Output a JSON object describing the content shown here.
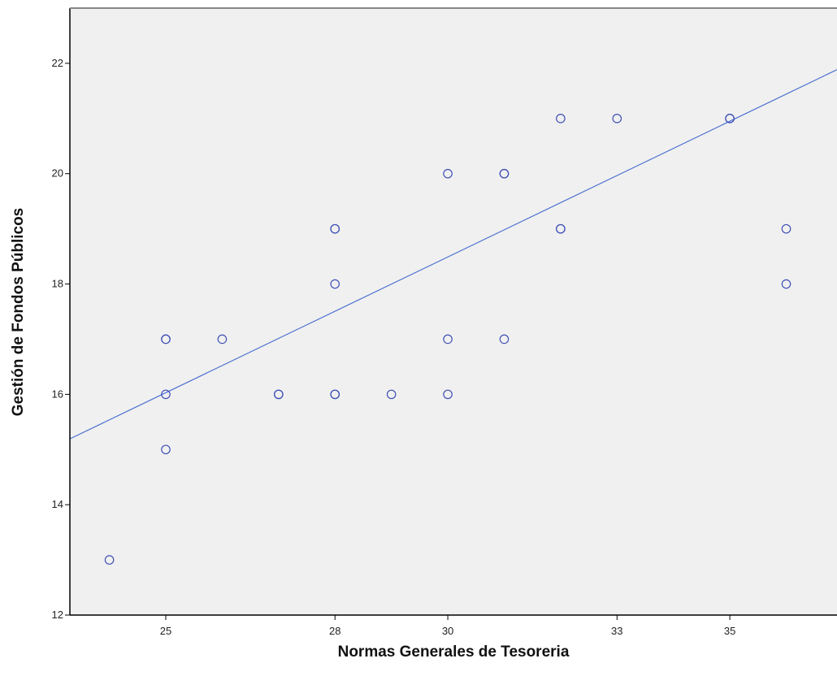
{
  "chart_data": {
    "type": "scatter",
    "title": "",
    "xlabel": "Normas Generales de Tesoreria",
    "ylabel": "Gestión de Fondos Públicos",
    "xlim": [
      23.3,
      36.9
    ],
    "ylim": [
      12,
      23
    ],
    "x_ticks": [
      25,
      28,
      30,
      33,
      35
    ],
    "y_ticks": [
      12,
      14,
      16,
      18,
      20,
      22
    ],
    "grid": false,
    "legend": "none",
    "points": [
      {
        "x": 24,
        "y": 13
      },
      {
        "x": 25,
        "y": 17
      },
      {
        "x": 25,
        "y": 17
      },
      {
        "x": 25,
        "y": 16
      },
      {
        "x": 25,
        "y": 15
      },
      {
        "x": 26,
        "y": 17
      },
      {
        "x": 27,
        "y": 16
      },
      {
        "x": 27,
        "y": 16
      },
      {
        "x": 28,
        "y": 19
      },
      {
        "x": 28,
        "y": 19
      },
      {
        "x": 28,
        "y": 18
      },
      {
        "x": 28,
        "y": 16
      },
      {
        "x": 28,
        "y": 16
      },
      {
        "x": 29,
        "y": 16
      },
      {
        "x": 30,
        "y": 20
      },
      {
        "x": 30,
        "y": 17
      },
      {
        "x": 30,
        "y": 16
      },
      {
        "x": 31,
        "y": 20
      },
      {
        "x": 31,
        "y": 20
      },
      {
        "x": 31,
        "y": 17
      },
      {
        "x": 32,
        "y": 21
      },
      {
        "x": 32,
        "y": 19
      },
      {
        "x": 32,
        "y": 19
      },
      {
        "x": 33,
        "y": 21
      },
      {
        "x": 35,
        "y": 21
      },
      {
        "x": 35,
        "y": 21
      },
      {
        "x": 36,
        "y": 19
      },
      {
        "x": 36,
        "y": 18
      }
    ],
    "fit_line": {
      "intercept": 3.73,
      "slope": 0.492
    },
    "colors": {
      "plot_background": "#f0f0f0",
      "marker": "#3f51b5",
      "fit_line": "#4a6fd0",
      "axis": "#000000",
      "frame": "#888888"
    }
  }
}
